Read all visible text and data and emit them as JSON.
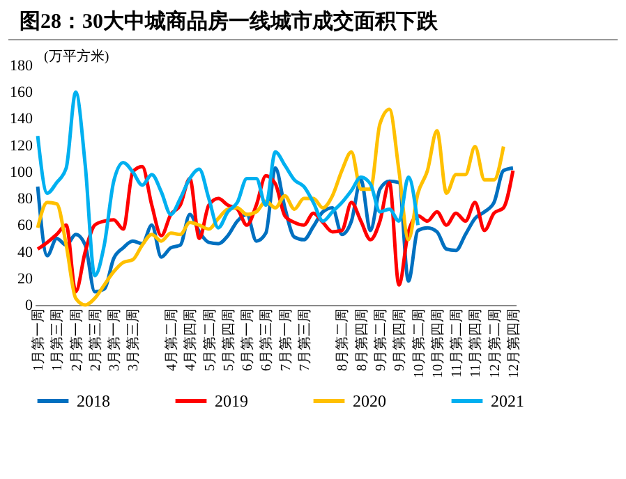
{
  "chart_data": {
    "type": "line",
    "title": "图28：30大中城商品房一线城市成交面积下跌",
    "ylabel": "(万平方米)",
    "categories": [
      "1月第一周",
      null,
      "1月第三周",
      null,
      "2月第一周",
      null,
      "2月第三周",
      null,
      "3月第一周",
      null,
      "3月第三周",
      null,
      null,
      null,
      "4月第二周",
      null,
      "4月第四周",
      null,
      "5月第二周",
      null,
      "5月第四周",
      null,
      "6月第一周",
      null,
      "6月第三周",
      null,
      "7月第一周",
      null,
      "7月第三周",
      null,
      null,
      null,
      "8月第二周",
      null,
      "8月第四周",
      null,
      "9月第二周",
      null,
      "9月第四周",
      null,
      "10月第二周",
      null,
      "10月第四周",
      null,
      "11月第二周",
      null,
      "11月第四周",
      null,
      "12月第二周",
      null,
      "12月第四周"
    ],
    "series": [
      {
        "name": "2018",
        "color": "#0070c0",
        "values": [
          89,
          37,
          50,
          45,
          53,
          45,
          10,
          12,
          35,
          43,
          48,
          46,
          60,
          36,
          43,
          45,
          68,
          55,
          47,
          46,
          52,
          63,
          68,
          48,
          54,
          103,
          73,
          51,
          49,
          59,
          70,
          73,
          53,
          63,
          94,
          56,
          87,
          93,
          92,
          18,
          56,
          58,
          55,
          42,
          41,
          53,
          65,
          70,
          77,
          101,
          103
        ]
      },
      {
        "name": "2019",
        "color": "#ff0000",
        "values": [
          42,
          47,
          53,
          60,
          10,
          40,
          60,
          63,
          64,
          57,
          100,
          104,
          75,
          52,
          68,
          75,
          95,
          50,
          75,
          80,
          75,
          72,
          60,
          75,
          97,
          91,
          67,
          62,
          60,
          69,
          62,
          55,
          56,
          77,
          63,
          49,
          63,
          92,
          15,
          55,
          67,
          63,
          70,
          60,
          69,
          63,
          77,
          56,
          69,
          73,
          101
        ]
      },
      {
        "name": "2020",
        "color": "#ffc000",
        "values": [
          58,
          77,
          76,
          45,
          5,
          0,
          5,
          15,
          25,
          32,
          34,
          45,
          53,
          48,
          54,
          53,
          62,
          60,
          57,
          65,
          72,
          73,
          68,
          70,
          78,
          73,
          82,
          72,
          80,
          80,
          73,
          82,
          101,
          115,
          87,
          87,
          136,
          147,
          101,
          49,
          84,
          101,
          131,
          84,
          98,
          98,
          119,
          94,
          94,
          119,
          null
        ]
      },
      {
        "name": "2021",
        "color": "#00b0f0",
        "values": [
          127,
          84,
          92,
          103,
          160,
          105,
          22,
          45,
          93,
          107,
          100,
          90,
          98,
          85,
          68,
          80,
          95,
          102,
          80,
          58,
          70,
          77,
          95,
          95,
          75,
          115,
          105,
          94,
          89,
          77,
          63,
          70,
          77,
          86,
          96,
          91,
          70,
          72,
          63,
          96,
          60,
          null,
          null,
          null,
          null,
          null,
          null,
          null,
          null,
          null,
          null
        ]
      }
    ],
    "ylim": [
      0,
      180
    ],
    "yticks": [
      0,
      20,
      40,
      60,
      80,
      100,
      120,
      140,
      160,
      180
    ],
    "grid": false,
    "legend": "bottom",
    "line_style": "solid"
  }
}
